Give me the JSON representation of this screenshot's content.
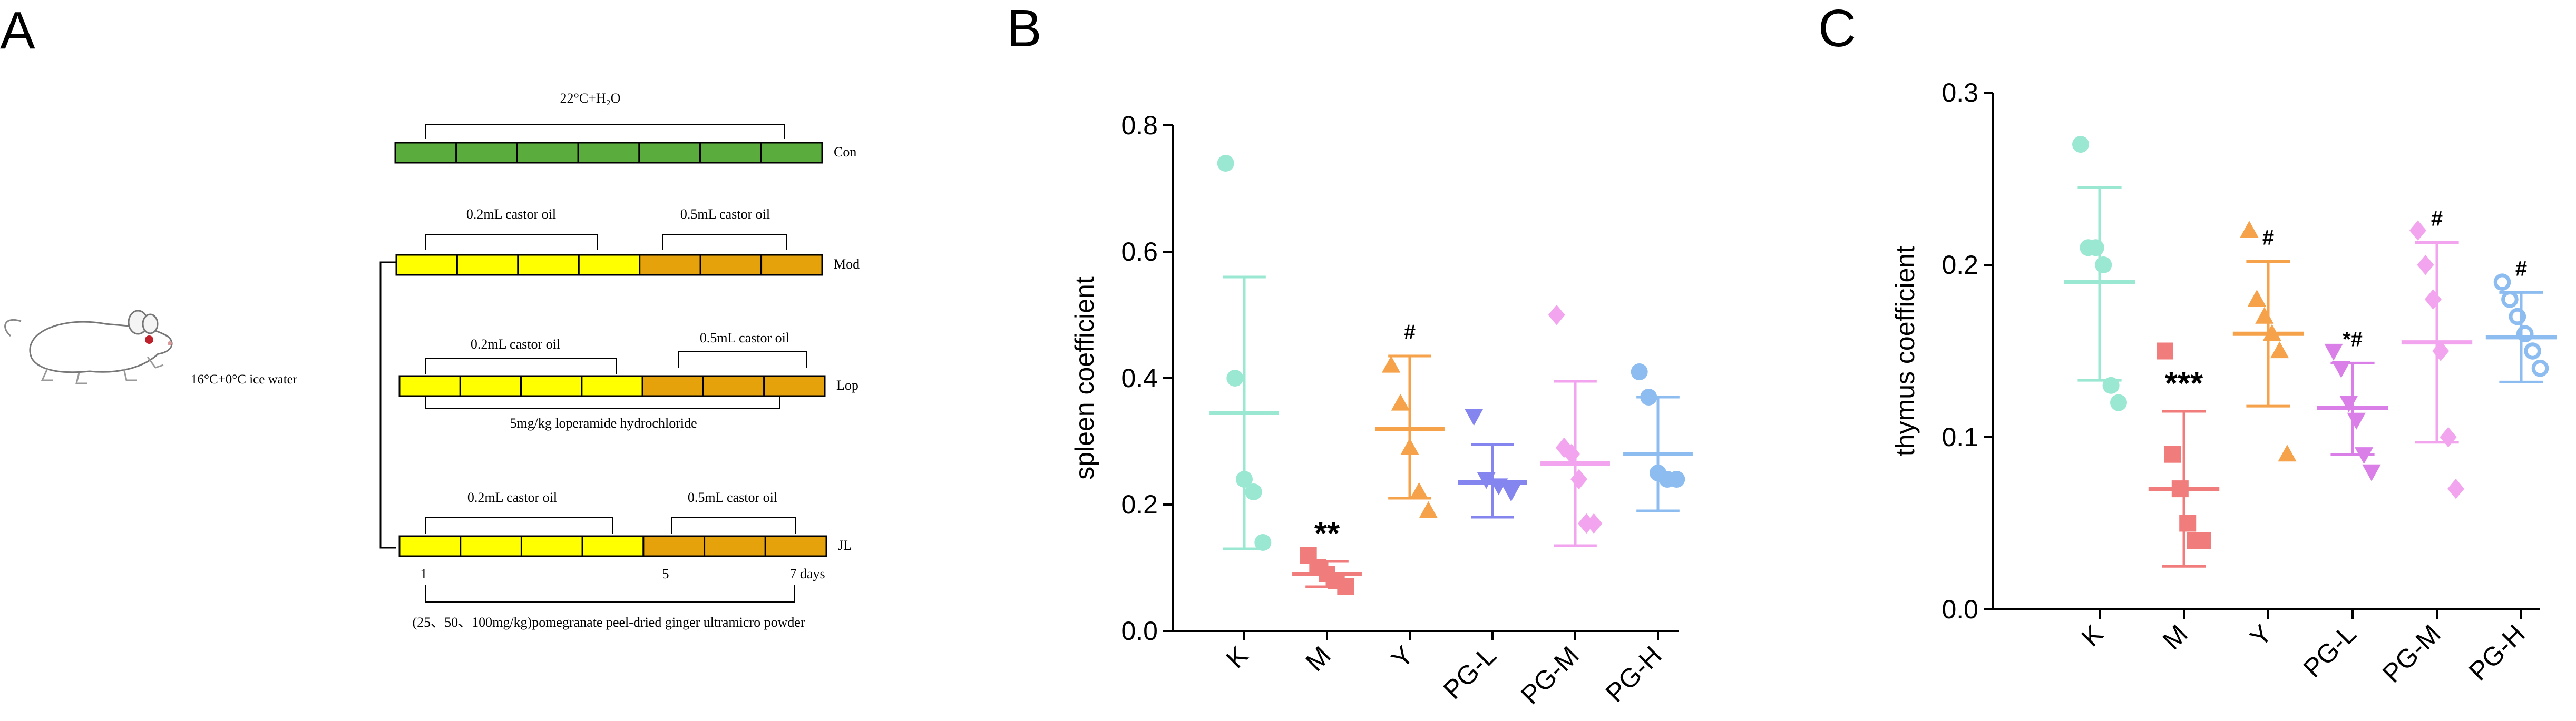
{
  "panels": {
    "A": {
      "label": "A",
      "mouse_condition": "16°C+0°C ice water",
      "groups": [
        {
          "name": "Con",
          "annotation": "22°C+H₂O",
          "segments": [
            "water",
            "water",
            "water",
            "water",
            "water",
            "water",
            "water"
          ]
        },
        {
          "name": "Mod",
          "annotation_left": "0.2mL castor oil",
          "annotation_right": "0.5mL castor oil",
          "segments": [
            "castor-low",
            "castor-low",
            "castor-low",
            "castor-low",
            "castor-high",
            "castor-high",
            "castor-high"
          ]
        },
        {
          "name": "Lop",
          "annotation_left": "0.2mL castor oil",
          "annotation_right": "0.5mL castor oil",
          "annotation_below": "5mg/kg loperamide hydrochloride",
          "segments": [
            "castor-low",
            "castor-low",
            "castor-low",
            "castor-low",
            "castor-high",
            "castor-high",
            "castor-high"
          ]
        },
        {
          "name": "JL",
          "annotation_left": "0.2mL castor oil",
          "annotation_right": "0.5mL castor oil",
          "segments": [
            "castor-low",
            "castor-low",
            "castor-low",
            "castor-low",
            "castor-high",
            "castor-high",
            "castor-high"
          ]
        }
      ],
      "day_labels": {
        "start": "1",
        "mid": "5",
        "end": "7 days"
      },
      "treatment": "(25、50、100mg/kg)pomegranate peel-dried ginger ultramicro powder",
      "colors": {
        "water": "#5aac3c",
        "castor-low": "#ffff00",
        "castor-high": "#e6a20a",
        "border": "#000000"
      }
    },
    "B_label": "B",
    "C_label": "C"
  },
  "chart_data": [
    {
      "type": "scatter",
      "title": "",
      "ylabel": "spleen coefficient",
      "xlabel": "",
      "ylim": [
        0,
        0.8
      ],
      "yticks": [
        "0.0",
        "0.2",
        "0.4",
        "0.6",
        "0.8"
      ],
      "categories": [
        "K",
        "M",
        "Y",
        "PG-L",
        "PG-M",
        "PG-H"
      ],
      "series": [
        {
          "name": "K",
          "marker": "circle-filled",
          "color": "#9ae8d2",
          "values": [
            0.74,
            0.4,
            0.24,
            0.22,
            0.14
          ],
          "mean": 0.345,
          "sd_low": 0.13,
          "sd_high": 0.56,
          "sig": ""
        },
        {
          "name": "M",
          "marker": "square-filled",
          "color": "#f07c7c",
          "values": [
            0.12,
            0.1,
            0.09,
            0.08,
            0.07
          ],
          "mean": 0.09,
          "sd_low": 0.07,
          "sd_high": 0.11,
          "sig": "**"
        },
        {
          "name": "Y",
          "marker": "triangle-up",
          "color": "#f5a24a",
          "values": [
            0.42,
            0.36,
            0.29,
            0.22,
            0.19
          ],
          "mean": 0.32,
          "sd_low": 0.21,
          "sd_high": 0.435,
          "sig": "#"
        },
        {
          "name": "PG-L",
          "marker": "triangle-down",
          "color": "#8585f0",
          "values": [
            0.34,
            0.24,
            0.23,
            0.22
          ],
          "mean": 0.235,
          "sd_low": 0.18,
          "sd_high": 0.295,
          "sig": ""
        },
        {
          "name": "PG-M",
          "marker": "diamond",
          "color": "#f2a4ee",
          "values": [
            0.5,
            0.29,
            0.28,
            0.24,
            0.17,
            0.17
          ],
          "mean": 0.265,
          "sd_low": 0.135,
          "sd_high": 0.395,
          "sig": ""
        },
        {
          "name": "PG-H",
          "marker": "circle-filled",
          "color": "#8cbcf0",
          "values": [
            0.41,
            0.37,
            0.25,
            0.24,
            0.24
          ],
          "mean": 0.28,
          "sd_low": 0.19,
          "sd_high": 0.37,
          "sig": ""
        }
      ]
    },
    {
      "type": "scatter",
      "title": "",
      "ylabel": "thymus coefficient",
      "xlabel": "",
      "ylim": [
        0,
        0.3
      ],
      "yticks": [
        "0.0",
        "0.1",
        "0.2",
        "0.3"
      ],
      "categories": [
        "K",
        "M",
        "Y",
        "PG-L",
        "PG-M",
        "PG-H"
      ],
      "series": [
        {
          "name": "K",
          "marker": "circle-filled",
          "color": "#9ae8d2",
          "values": [
            0.27,
            0.21,
            0.21,
            0.2,
            0.13,
            0.12
          ],
          "mean": 0.19,
          "sd_low": 0.133,
          "sd_high": 0.245,
          "sig": ""
        },
        {
          "name": "M",
          "marker": "square-filled",
          "color": "#f07c7c",
          "values": [
            0.15,
            0.09,
            0.07,
            0.05,
            0.04,
            0.04
          ],
          "mean": 0.07,
          "sd_low": 0.025,
          "sd_high": 0.115,
          "sig": "***"
        },
        {
          "name": "Y",
          "marker": "triangle-up",
          "color": "#f5a24a",
          "values": [
            0.22,
            0.18,
            0.17,
            0.16,
            0.15,
            0.09
          ],
          "mean": 0.16,
          "sd_low": 0.118,
          "sd_high": 0.202,
          "sig": "#"
        },
        {
          "name": "PG-L",
          "marker": "triangle-down",
          "color": "#da7ee8",
          "values": [
            0.15,
            0.14,
            0.12,
            0.11,
            0.09,
            0.08
          ],
          "mean": 0.117,
          "sd_low": 0.09,
          "sd_high": 0.143,
          "sig": "*#"
        },
        {
          "name": "PG-M",
          "marker": "diamond",
          "color": "#f2a4ee",
          "values": [
            0.22,
            0.2,
            0.18,
            0.15,
            0.1,
            0.07
          ],
          "mean": 0.155,
          "sd_low": 0.097,
          "sd_high": 0.213,
          "sig": "#"
        },
        {
          "name": "PG-H",
          "marker": "circle-open",
          "color": "#8cbcf0",
          "values": [
            0.19,
            0.18,
            0.17,
            0.16,
            0.15,
            0.14
          ],
          "mean": 0.158,
          "sd_low": 0.132,
          "sd_high": 0.184,
          "sig": "#"
        }
      ]
    }
  ]
}
